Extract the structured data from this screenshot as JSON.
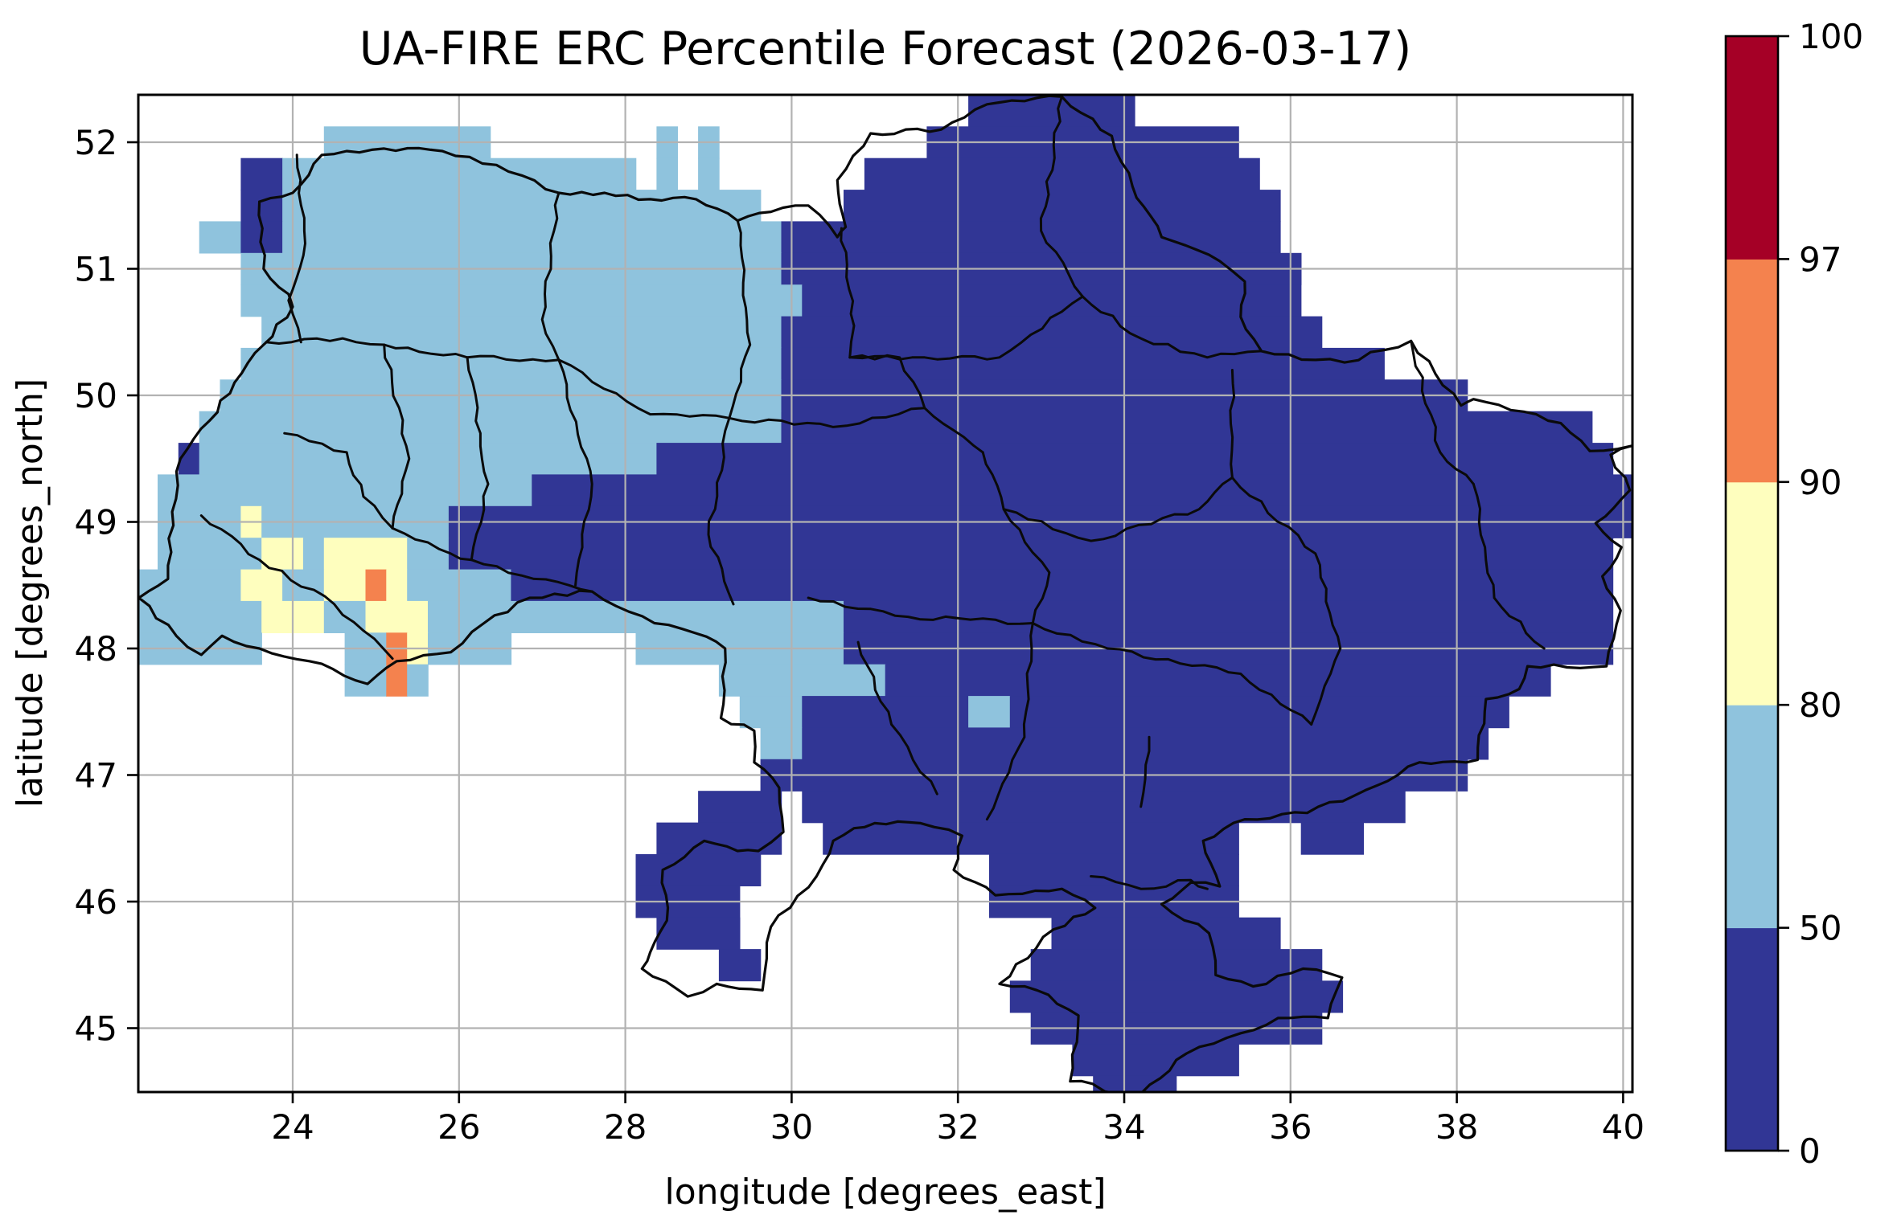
{
  "chart_data": {
    "type": "heatmap",
    "title": "UA-FIRE ERC Percentile Forecast (2026-03-17)",
    "xlabel": "longitude [degrees_east]",
    "ylabel": "latitude [degrees_north]",
    "x_ticks": [
      24,
      26,
      28,
      30,
      32,
      34,
      36,
      38,
      40
    ],
    "y_ticks": [
      45,
      46,
      47,
      48,
      49,
      50,
      51,
      52
    ],
    "xlim": [
      22.14,
      40.12
    ],
    "ylim": [
      44.49,
      52.37
    ],
    "grid_on": true,
    "gridline_color": "#b2b2b2",
    "colorbar": {
      "boundaries": [
        0,
        50,
        80,
        90,
        97,
        100
      ],
      "tick_labels": [
        "0",
        "50",
        "80",
        "90",
        "97",
        "100"
      ],
      "segment_colors_bottom_to_top": [
        "#313695",
        "#8fc3dd",
        "#fefebe",
        "#f4824e",
        "#a50026"
      ],
      "orientation": "vertical",
      "position": "right"
    },
    "palette": {
      "D": {
        "range": "0-50",
        "color": "#313695"
      },
      "L": {
        "range": "50-80",
        "color": "#8fc3dd"
      },
      "Y": {
        "range": "80-90",
        "color": "#fefebe"
      },
      "O": {
        "range": "90-97",
        "color": "#f4824e"
      },
      "R": {
        "range": "97-100",
        "color": "#a50026"
      },
      ".": {
        "range": "no-data",
        "color": "none"
      }
    },
    "grid": {
      "lon_left_edge": 22.125,
      "lat_top_edge": 52.375,
      "dlon": 0.25,
      "dlat": 0.25,
      "ncols": 72,
      "nrows": 32,
      "rows_rle": [
        "40.,8D,24.",
        "9.,8L,8.,1L,1.,1L,10.,15D,19.",
        "5.,2D,17L,1.,1L,1.,1L,7.,19D,18.",
        "5.,2D,23L,4.,21D,17.",
        "3.,2L,2D,24L,24D,17.",
        "5.,26L,25D,16.",
        "5.,27L,24D,16.",
        "6.,25L,26D,15.",
        "5.,26L,29D,12.",
        "4.,27L,33D,8.",
        "3.,28L,39D,2.",
        "2.,1D,22L,46D,1.",
        "1.,18L,53D",
        "1.,4L,1Y,9L,57D",
        "1.,5L,2Y,1L,4Y,2L,56D,1.",
        "5L,2Y,2L,2Y,1O,1Y,5L,53D,1.",
        "6L,3Y,2L,3Y,20L,37D,1.",
        "6L,4.,2L,1O,1Y,4L,6.,10L,37D,1.",
        "10.,2L,1O,1L,14.,8L,32D,4.",
        "29.,3L,8D,2L,24D,6.",
        "30.,2L,33D,7.",
        "30.,34D,8.",
        "27.,4D,1.,29D,11.",
        "25.,6D,2.,20D,3.,3D,13.",
        "24.,6D,11.,12D,19.",
        "24.,5D,12.,12D,19.",
        "25.,4D,15.,11D,17.",
        "28.,2D,13.,14D,15.",
        "42.,16D,14.",
        "43.,14D,15.",
        "45.,8D,19.",
        "46.,4D,22."
      ]
    },
    "borders": {
      "outer": [
        [
          23.6,
          51.53
        ],
        [
          24.0,
          51.6
        ],
        [
          24.35,
          51.9
        ],
        [
          25.1,
          51.95
        ],
        [
          25.8,
          51.93
        ],
        [
          26.45,
          51.82
        ],
        [
          27.2,
          51.6
        ],
        [
          27.75,
          51.6
        ],
        [
          28.3,
          51.55
        ],
        [
          28.85,
          51.55
        ],
        [
          29.35,
          51.38
        ],
        [
          29.75,
          51.45
        ],
        [
          30.2,
          51.5
        ],
        [
          30.55,
          51.25
        ],
        [
          30.65,
          51.33
        ],
        [
          30.55,
          51.7
        ],
        [
          30.95,
          52.07
        ],
        [
          31.8,
          52.1
        ],
        [
          32.35,
          52.3
        ],
        [
          33.25,
          52.36
        ],
        [
          33.85,
          52.05
        ],
        [
          34.1,
          51.65
        ],
        [
          34.45,
          51.25
        ],
        [
          35.15,
          51.06
        ],
        [
          35.45,
          50.9
        ],
        [
          35.4,
          50.62
        ],
        [
          35.65,
          50.35
        ],
        [
          36.3,
          50.28
        ],
        [
          36.65,
          50.26
        ],
        [
          37.45,
          50.43
        ],
        [
          38.05,
          49.92
        ],
        [
          38.2,
          49.97
        ],
        [
          39.25,
          49.78
        ],
        [
          39.6,
          49.56
        ],
        [
          40.1,
          49.6
        ],
        [
          39.85,
          49.53
        ],
        [
          40.08,
          49.25
        ],
        [
          39.67,
          48.99
        ],
        [
          39.98,
          48.8
        ],
        [
          39.75,
          48.57
        ],
        [
          39.97,
          48.3
        ],
        [
          39.8,
          47.86
        ],
        [
          38.85,
          47.86
        ],
        [
          38.75,
          47.68
        ],
        [
          38.35,
          47.6
        ],
        [
          38.25,
          47.12
        ],
        [
          37.55,
          47.1
        ],
        [
          36.9,
          46.88
        ],
        [
          36.2,
          46.7
        ],
        [
          35.45,
          46.65
        ],
        [
          34.95,
          46.48
        ],
        [
          35.15,
          46.12
        ],
        [
          34.8,
          46.15
        ],
        [
          34.45,
          45.98
        ],
        [
          35.02,
          45.75
        ],
        [
          35.1,
          45.42
        ],
        [
          35.55,
          45.33
        ],
        [
          36.15,
          45.47
        ],
        [
          36.62,
          45.4
        ],
        [
          36.45,
          45.08
        ],
        [
          35.85,
          45.08
        ],
        [
          35.4,
          44.96
        ],
        [
          34.75,
          44.8
        ],
        [
          34.1,
          44.42
        ],
        [
          33.62,
          44.56
        ],
        [
          33.35,
          44.58
        ],
        [
          33.45,
          45.1
        ],
        [
          32.95,
          45.3
        ],
        [
          32.5,
          45.35
        ],
        [
          33.15,
          45.78
        ],
        [
          33.65,
          45.95
        ],
        [
          33.25,
          46.1
        ],
        [
          32.45,
          46.05
        ],
        [
          31.95,
          46.25
        ],
        [
          32.05,
          46.52
        ],
        [
          31.55,
          46.62
        ],
        [
          31.0,
          46.62
        ],
        [
          30.75,
          46.58
        ],
        [
          30.5,
          46.48
        ],
        [
          30.3,
          46.2
        ],
        [
          29.75,
          45.8
        ],
        [
          29.7,
          45.55
        ],
        [
          29.65,
          45.3
        ],
        [
          29.1,
          45.35
        ],
        [
          28.75,
          45.25
        ],
        [
          28.2,
          45.47
        ],
        [
          28.3,
          45.6
        ],
        [
          28.5,
          45.85
        ],
        [
          28.45,
          46.25
        ],
        [
          28.95,
          46.48
        ],
        [
          29.35,
          46.4
        ],
        [
          29.6,
          46.4
        ],
        [
          29.9,
          46.55
        ],
        [
          29.85,
          46.9
        ],
        [
          29.55,
          47.1
        ],
        [
          29.55,
          47.35
        ],
        [
          29.15,
          47.45
        ],
        [
          29.2,
          48.0
        ],
        [
          28.85,
          48.12
        ],
        [
          28.35,
          48.2
        ],
        [
          27.6,
          48.45
        ],
        [
          26.85,
          48.4
        ],
        [
          26.3,
          48.2
        ],
        [
          25.9,
          47.97
        ],
        [
          25.25,
          47.9
        ],
        [
          24.9,
          47.72
        ],
        [
          24.2,
          47.9
        ],
        [
          23.6,
          48.0
        ],
        [
          23.15,
          48.1
        ],
        [
          22.9,
          47.95
        ],
        [
          22.6,
          48.1
        ],
        [
          22.15,
          48.4
        ],
        [
          22.5,
          48.55
        ],
        [
          22.55,
          49.08
        ],
        [
          22.65,
          49.5
        ],
        [
          23.0,
          49.8
        ],
        [
          23.3,
          50.1
        ],
        [
          23.65,
          50.4
        ],
        [
          24.0,
          50.7
        ],
        [
          23.95,
          50.8
        ],
        [
          23.65,
          51.0
        ],
        [
          23.6,
          51.53
        ]
      ],
      "internal": [
        [
          [
            24.05,
            51.9
          ],
          [
            24.15,
            51.2
          ],
          [
            23.95,
            50.75
          ],
          [
            24.1,
            50.42
          ]
        ],
        [
          [
            27.2,
            51.6
          ],
          [
            27.0,
            50.6
          ],
          [
            27.2,
            50.28
          ]
        ],
        [
          [
            29.35,
            51.38
          ],
          [
            29.5,
            50.4
          ],
          [
            29.25,
            49.82
          ]
        ],
        [
          [
            30.6,
            51.32
          ],
          [
            30.75,
            50.55
          ],
          [
            30.7,
            50.3
          ]
        ],
        [
          [
            33.25,
            52.36
          ],
          [
            33.0,
            51.3
          ],
          [
            33.5,
            50.78
          ]
        ],
        [
          [
            33.5,
            50.78
          ],
          [
            34.2,
            50.45
          ],
          [
            35.0,
            50.3
          ],
          [
            35.65,
            50.35
          ]
        ],
        [
          [
            23.68,
            50.42
          ],
          [
            24.6,
            50.45
          ],
          [
            25.1,
            50.4
          ],
          [
            26.1,
            50.3
          ],
          [
            27.2,
            50.28
          ]
        ],
        [
          [
            25.1,
            50.4
          ],
          [
            25.4,
            49.5
          ],
          [
            25.2,
            48.95
          ]
        ],
        [
          [
            26.1,
            50.3
          ],
          [
            26.35,
            49.3
          ],
          [
            26.15,
            48.7
          ]
        ],
        [
          [
            27.2,
            50.28
          ],
          [
            27.6,
            49.3
          ],
          [
            27.4,
            48.5
          ]
        ],
        [
          [
            29.25,
            49.82
          ],
          [
            29.0,
            48.9
          ],
          [
            29.3,
            48.35
          ]
        ],
        [
          [
            29.25,
            49.82
          ],
          [
            30.5,
            49.75
          ],
          [
            31.6,
            49.9
          ],
          [
            32.3,
            49.55
          ]
        ],
        [
          [
            31.6,
            49.9
          ],
          [
            31.3,
            50.3
          ],
          [
            30.7,
            50.3
          ]
        ],
        [
          [
            32.3,
            49.55
          ],
          [
            32.55,
            49.1
          ],
          [
            33.6,
            48.85
          ],
          [
            34.9,
            49.1
          ],
          [
            35.3,
            49.35
          ]
        ],
        [
          [
            35.3,
            50.2
          ],
          [
            35.3,
            49.35
          ]
        ],
        [
          [
            37.45,
            50.43
          ],
          [
            37.8,
            49.55
          ],
          [
            38.2,
            49.3
          ]
        ],
        [
          [
            35.3,
            49.35
          ],
          [
            36.3,
            48.75
          ],
          [
            36.6,
            48.0
          ],
          [
            36.25,
            47.4
          ]
        ],
        [
          [
            38.2,
            49.3
          ],
          [
            38.45,
            48.4
          ],
          [
            39.05,
            48.0
          ]
        ],
        [
          [
            33.8,
            48.0
          ],
          [
            35.4,
            47.8
          ],
          [
            36.25,
            47.4
          ]
        ],
        [
          [
            32.55,
            49.1
          ],
          [
            33.1,
            48.6
          ],
          [
            32.9,
            48.2
          ],
          [
            33.8,
            48.0
          ]
        ],
        [
          [
            30.2,
            48.4
          ],
          [
            31.4,
            48.25
          ],
          [
            32.9,
            48.2
          ]
        ],
        [
          [
            32.9,
            48.2
          ],
          [
            32.8,
            47.3
          ],
          [
            32.35,
            46.65
          ]
        ],
        [
          [
            30.8,
            48.05
          ],
          [
            31.2,
            47.4
          ],
          [
            31.75,
            46.85
          ]
        ],
        [
          [
            34.3,
            47.3
          ],
          [
            34.2,
            46.75
          ]
        ],
        [
          [
            27.2,
            50.28
          ],
          [
            28.3,
            49.85
          ],
          [
            29.25,
            49.82
          ]
        ],
        [
          [
            23.9,
            49.7
          ],
          [
            24.65,
            49.55
          ],
          [
            24.85,
            49.2
          ],
          [
            25.2,
            48.95
          ]
        ],
        [
          [
            25.2,
            48.95
          ],
          [
            25.9,
            48.75
          ],
          [
            26.15,
            48.7
          ]
        ],
        [
          [
            22.9,
            49.05
          ],
          [
            23.6,
            48.7
          ],
          [
            24.5,
            48.35
          ],
          [
            25.2,
            47.92
          ]
        ],
        [
          [
            30.7,
            50.3
          ],
          [
            31.6,
            50.3
          ],
          [
            32.5,
            50.3
          ],
          [
            33.5,
            50.78
          ]
        ],
        [
          [
            33.6,
            46.2
          ],
          [
            34.2,
            46.1
          ],
          [
            34.8,
            46.17
          ],
          [
            35.0,
            46.1
          ]
        ],
        [
          [
            26.15,
            48.7
          ],
          [
            26.9,
            48.55
          ],
          [
            27.6,
            48.45
          ]
        ]
      ]
    }
  }
}
